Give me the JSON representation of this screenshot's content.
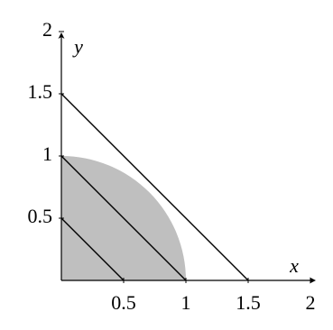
{
  "chart_data": {
    "type": "line",
    "xlabel": "x",
    "ylabel": "y",
    "xlim": [
      0,
      2
    ],
    "ylim": [
      0,
      2
    ],
    "xticks": [
      0.5,
      1,
      1.5,
      2
    ],
    "yticks": [
      0.5,
      1,
      1.5,
      2
    ],
    "regions": [
      {
        "shape": "quarter-disk",
        "radius": 1,
        "color": "#bfbfbf"
      }
    ],
    "series": [
      {
        "color": "#000000",
        "x": [
          0,
          0.5
        ],
        "values": [
          0.5,
          0
        ]
      },
      {
        "color": "#000000",
        "x": [
          0,
          1
        ],
        "values": [
          1,
          0
        ]
      },
      {
        "color": "#000000",
        "x": [
          0,
          1.5
        ],
        "values": [
          1.5,
          0
        ]
      }
    ]
  }
}
